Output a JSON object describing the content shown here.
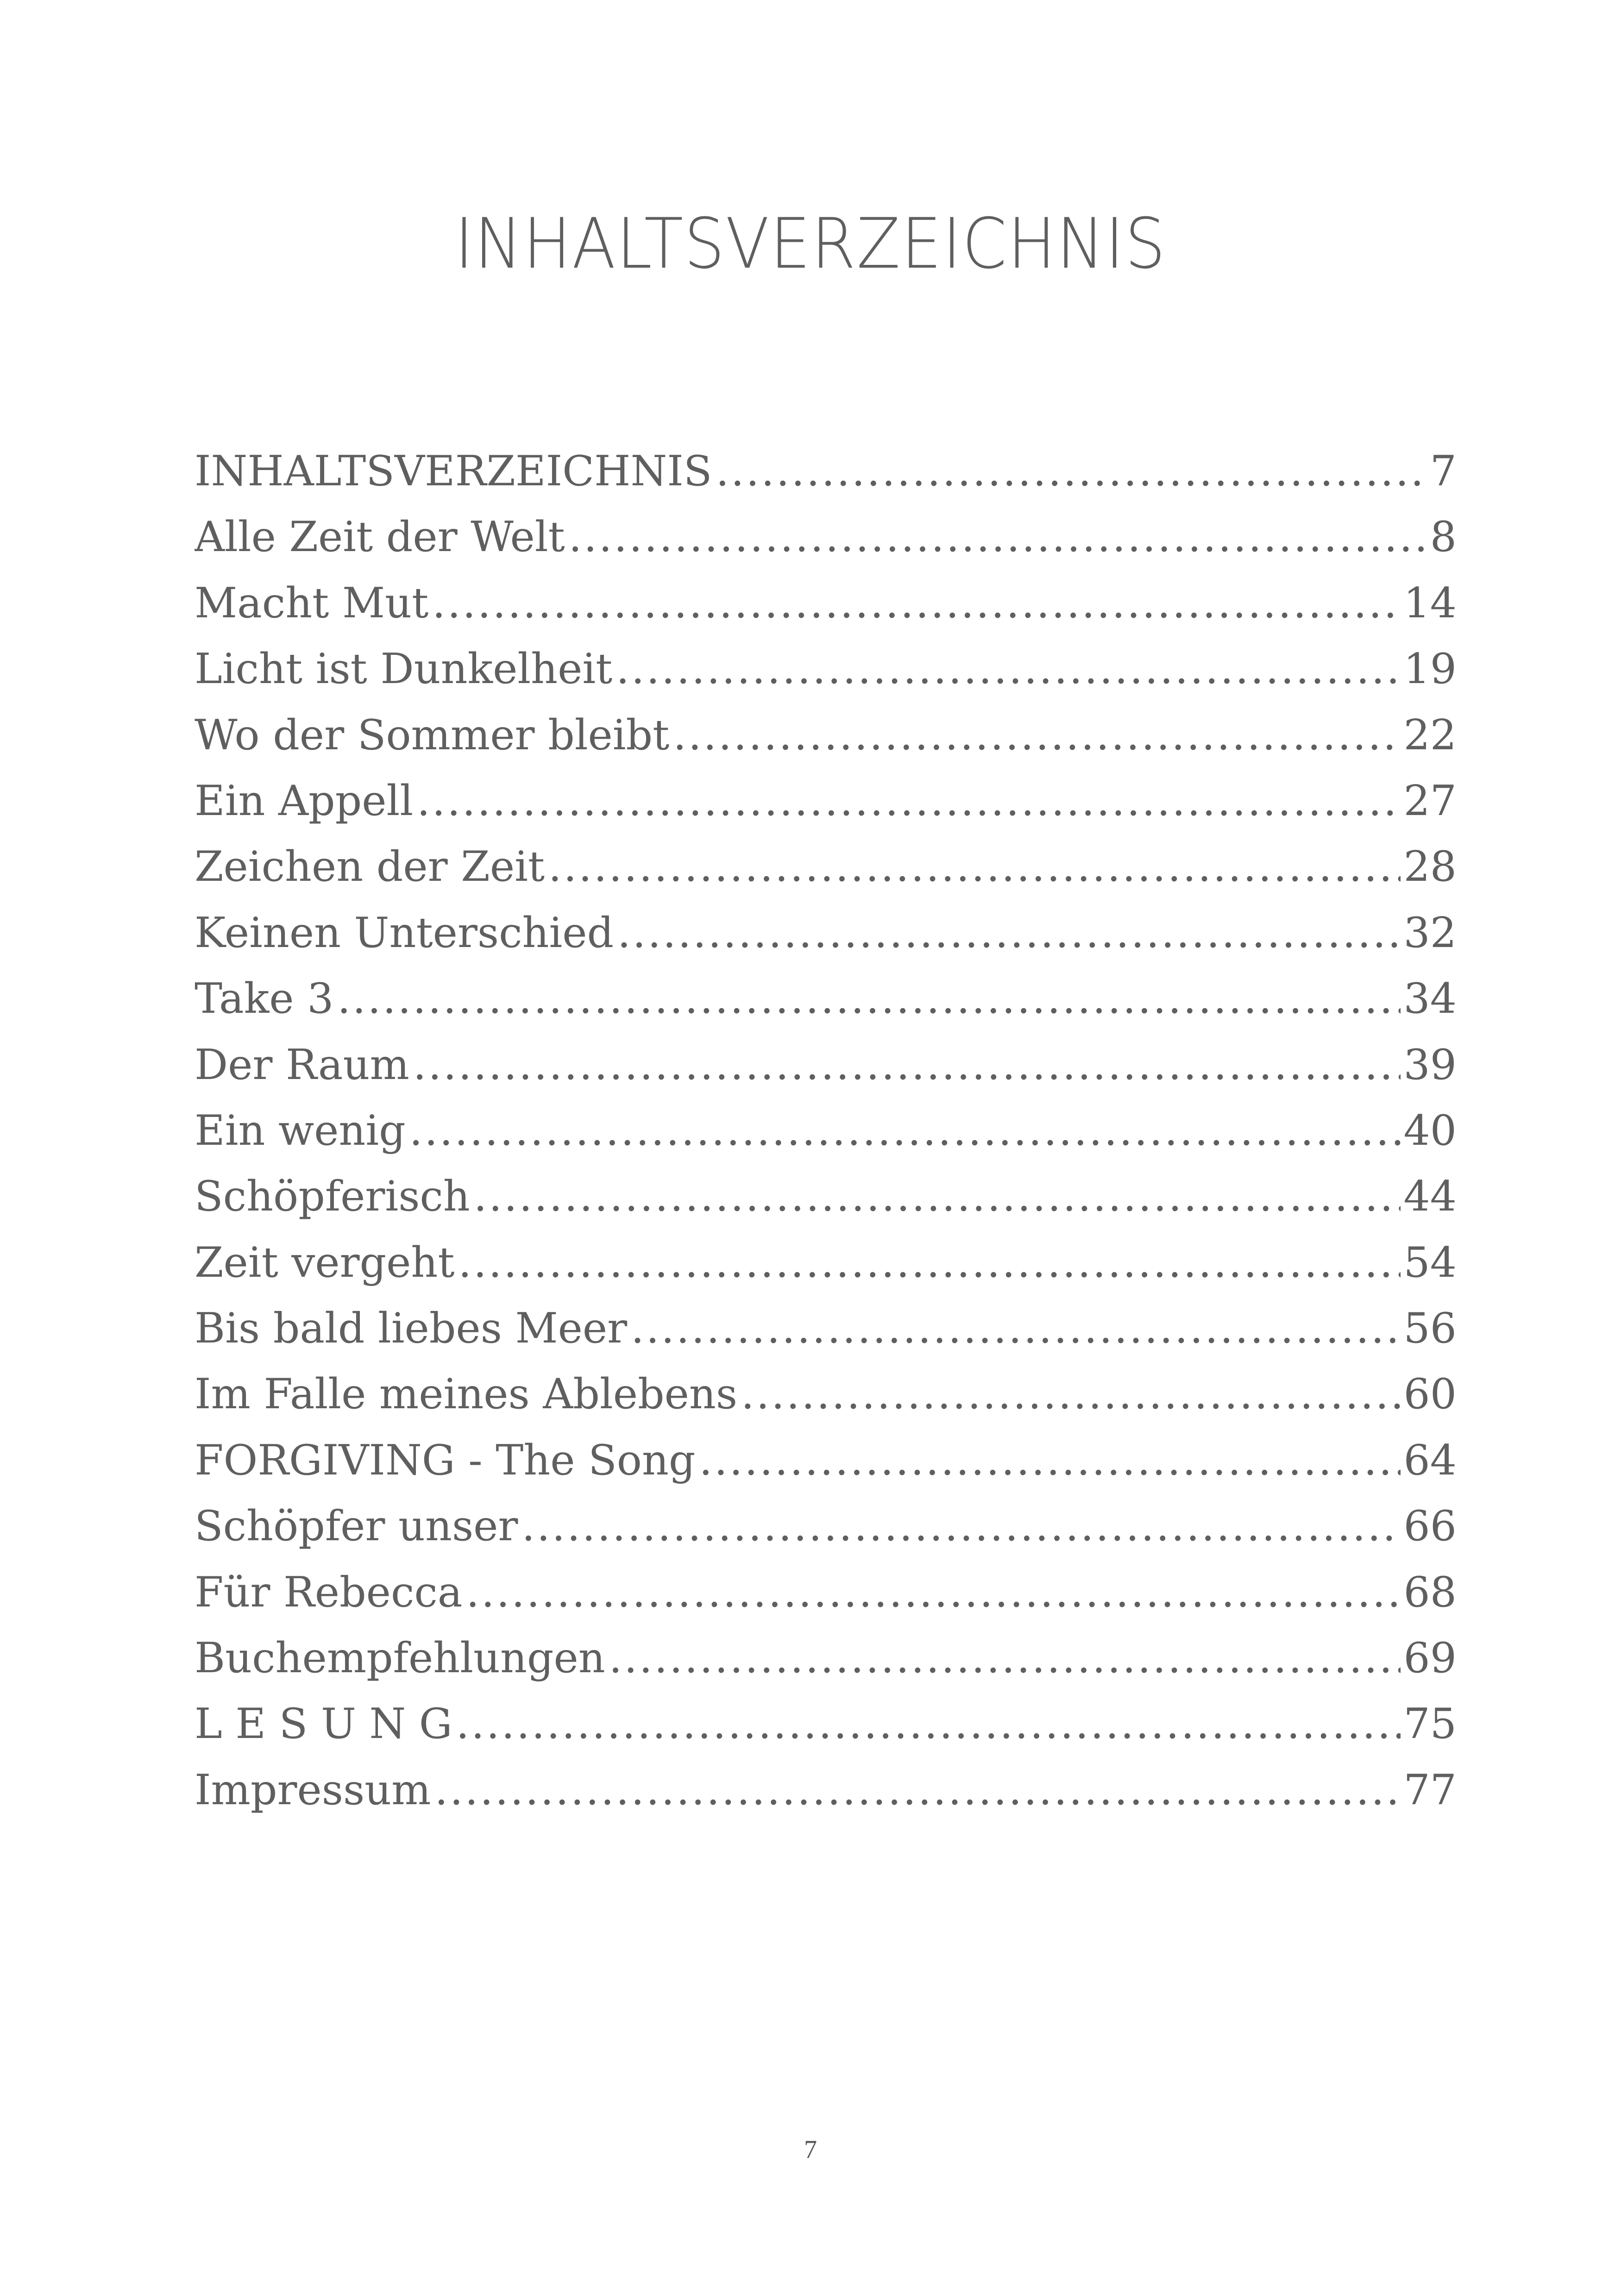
{
  "title": "INHALTSVERZEICHNIS",
  "entries": [
    {
      "label": "INHALTSVERZEICHNIS",
      "page": "7"
    },
    {
      "label": "Alle Zeit der Welt",
      "page": "8"
    },
    {
      "label": "Macht Mut",
      "page": "14"
    },
    {
      "label": "Licht ist Dunkelheit",
      "page": "19"
    },
    {
      "label": "Wo der Sommer bleibt",
      "page": "22"
    },
    {
      "label": "Ein Appell",
      "page": "27"
    },
    {
      "label": "Zeichen der Zeit",
      "page": "28"
    },
    {
      "label": "Keinen Unterschied",
      "page": "32"
    },
    {
      "label": "Take 3",
      "page": "34"
    },
    {
      "label": "Der Raum",
      "page": "39"
    },
    {
      "label": "Ein wenig",
      "page": "40"
    },
    {
      "label": "Schöpferisch",
      "page": "44"
    },
    {
      "label": "Zeit vergeht",
      "page": "54"
    },
    {
      "label": "Bis bald liebes Meer",
      "page": "56"
    },
    {
      "label": "Im Falle meines Ablebens",
      "page": "60"
    },
    {
      "label": "FORGIVING - The Song",
      "page": "64"
    },
    {
      "label": "Schöpfer unser",
      "page": "66"
    },
    {
      "label": "Für Rebecca",
      "page": "68"
    },
    {
      "label": "Buchempfehlungen",
      "page": "69"
    },
    {
      "label": "L E S U N G",
      "page": "75"
    },
    {
      "label": "Impressum",
      "page": "77"
    }
  ],
  "page_number": "7",
  "colors": {
    "text": "#5f5f5f",
    "background": "#ffffff"
  }
}
